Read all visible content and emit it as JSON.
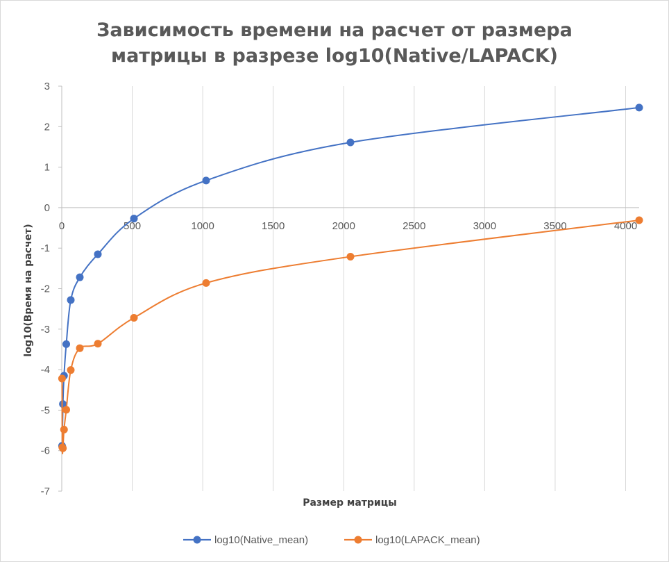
{
  "chart_data": {
    "type": "scatter",
    "title_lines": [
      "Зависимость времени на расчет от размера",
      "матрицы в разрезе log10(Native/LAPACK)"
    ],
    "xlabel": "Размер матрицы",
    "ylabel": "log10(Время на расчет)",
    "xlim": [
      0,
      4096
    ],
    "ylim": [
      -7,
      3
    ],
    "x_ticks": [
      "0",
      "500",
      "1000",
      "1500",
      "2000",
      "2500",
      "3000",
      "3500",
      "4000"
    ],
    "x_tick_values": [
      0,
      500,
      1000,
      1500,
      2000,
      2500,
      3000,
      3500,
      4000
    ],
    "y_ticks": [
      "3",
      "2",
      "1",
      "0",
      "-1",
      "-2",
      "-3",
      "-4",
      "-5",
      "-6",
      "-7"
    ],
    "y_tick_values": [
      3,
      2,
      1,
      0,
      -1,
      -2,
      -3,
      -4,
      -5,
      -6,
      -7
    ],
    "grid": "vertical",
    "smooth": true,
    "legend_position": "bottom",
    "series": [
      {
        "name": "log10(Native_mean)",
        "color": "#4472c4",
        "x": [
          2,
          4,
          8,
          16,
          32,
          64,
          128,
          256,
          512,
          1024,
          2048,
          4096
        ],
        "y": [
          -5.88,
          -5.9,
          -4.85,
          -4.15,
          -3.37,
          -2.28,
          -1.72,
          -1.15,
          -0.27,
          0.67,
          1.61,
          2.47
        ]
      },
      {
        "name": "log10(LAPACK_mean)",
        "color": "#ed7d31",
        "x": [
          2,
          4,
          8,
          16,
          32,
          64,
          128,
          256,
          512,
          1024,
          2048,
          4096
        ],
        "y": [
          -4.22,
          -5.92,
          -5.94,
          -5.48,
          -4.99,
          -4.01,
          -3.47,
          -3.36,
          -2.72,
          -1.86,
          -1.21,
          -0.31
        ]
      }
    ]
  }
}
